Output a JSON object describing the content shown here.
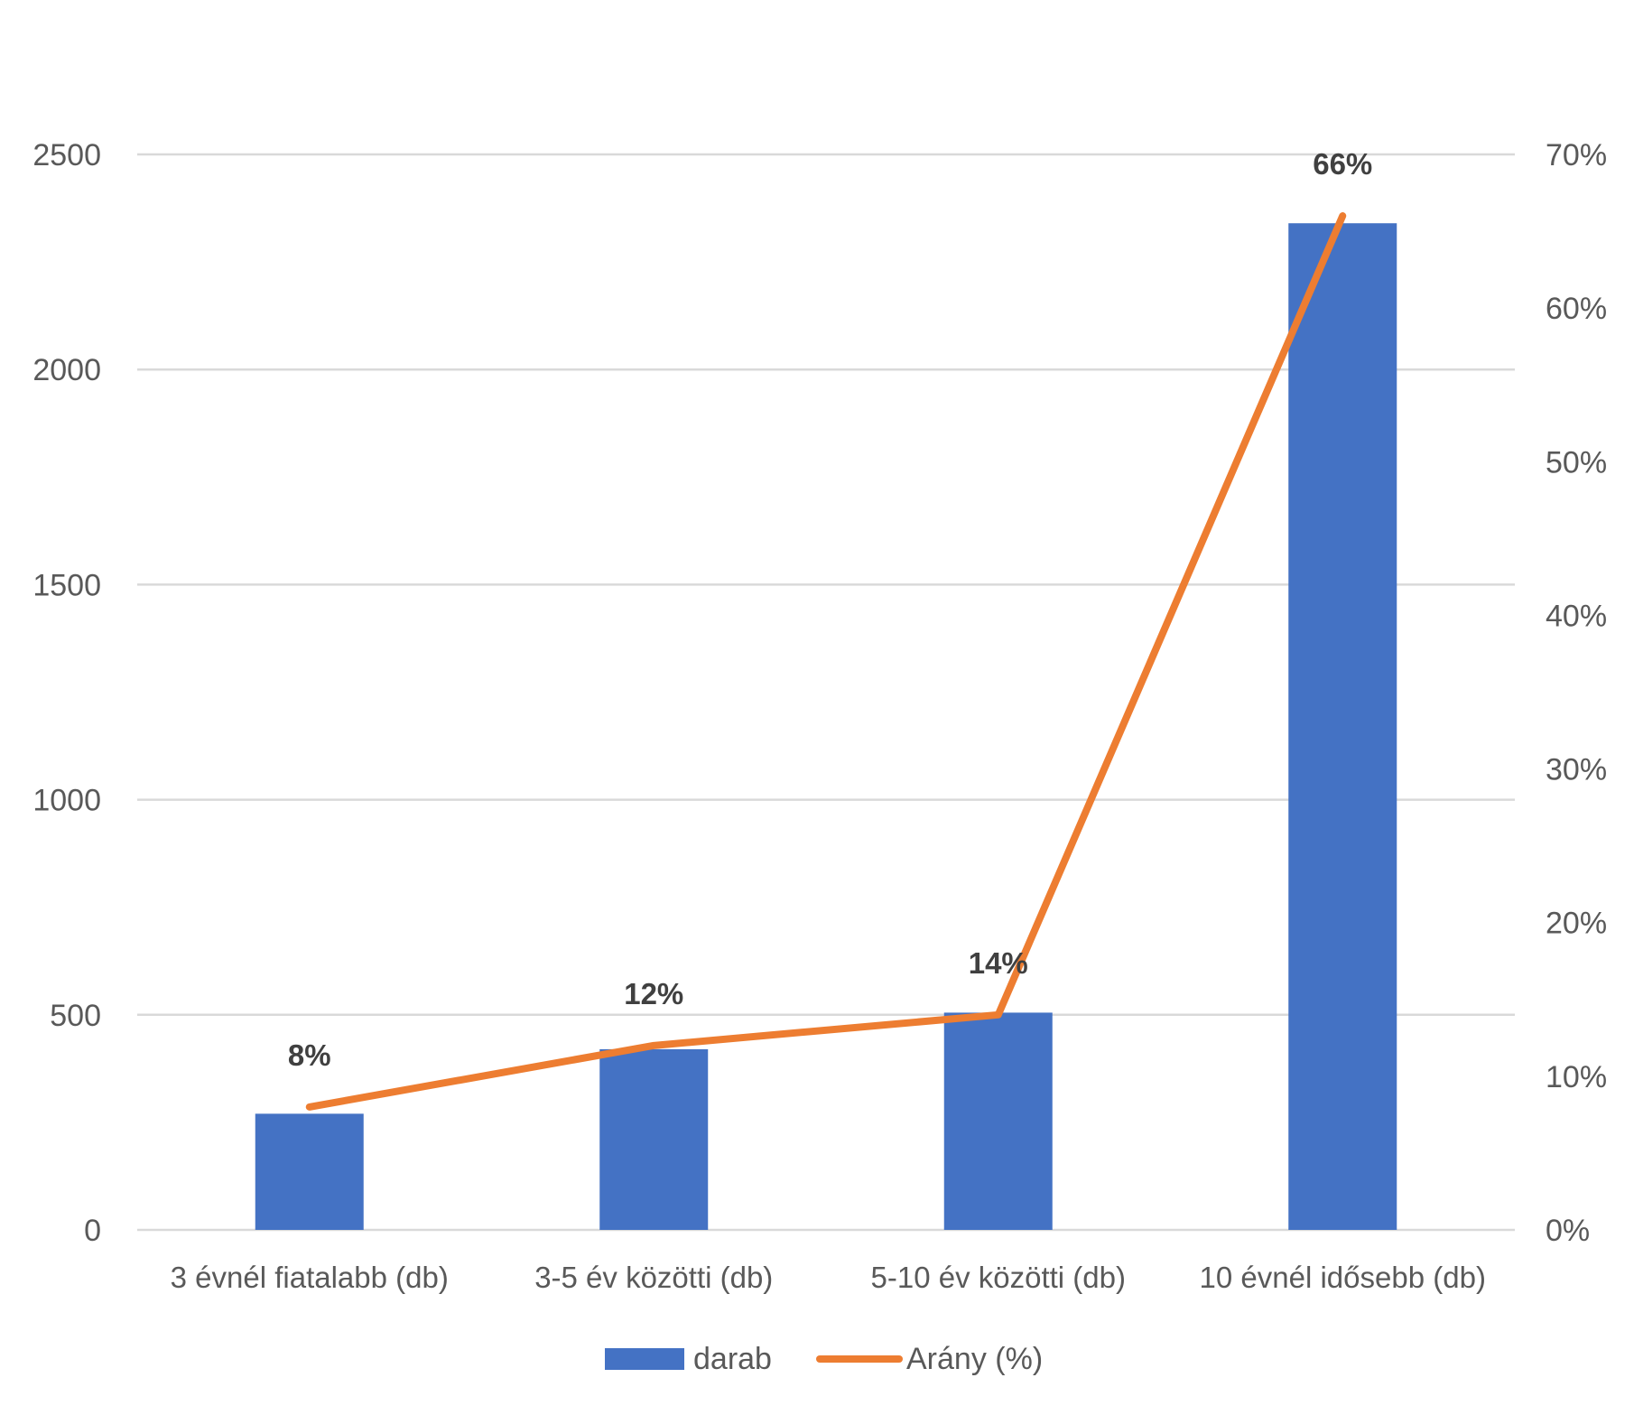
{
  "chart_data": {
    "type": "bar",
    "categories": [
      "3 évnél fiatalabb (db)",
      "3-5 év közötti (db)",
      "5-10 év közötti (db)",
      "10 évnél idősebb (db)"
    ],
    "series": [
      {
        "name": "darab",
        "type": "bar",
        "axis": "left",
        "color": "#4472C4",
        "values": [
          270,
          420,
          505,
          2340
        ]
      },
      {
        "name": "Arány (%)",
        "type": "line",
        "axis": "right",
        "color": "#ED7D31",
        "values": [
          0.08,
          0.12,
          0.14,
          0.66
        ],
        "data_labels": [
          "8%",
          "12%",
          "14%",
          "66%"
        ]
      }
    ],
    "y_left": {
      "ylim": [
        0,
        2500
      ],
      "ticks": [
        "0",
        "500",
        "1000",
        "1500",
        "2000",
        "2500"
      ]
    },
    "y_right": {
      "ylim": [
        0,
        0.7
      ],
      "ticks": [
        "0%",
        "10%",
        "20%",
        "30%",
        "40%",
        "50%",
        "60%",
        "70%"
      ]
    },
    "grid": true,
    "legend": "bottom"
  }
}
